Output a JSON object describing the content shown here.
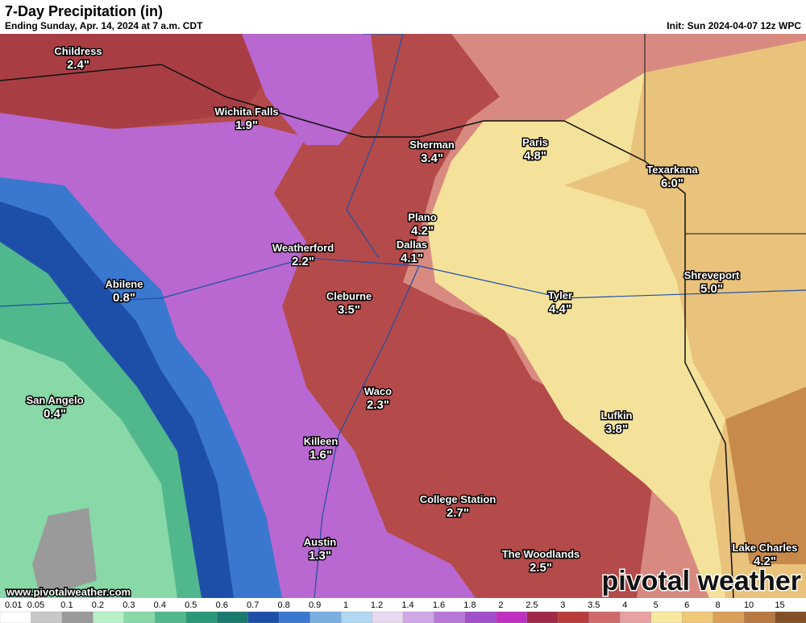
{
  "header": {
    "title": "7-Day Precipitation (in)",
    "subtitle": "Ending Sunday, Apr. 14, 2024 at 7 a.m. CDT",
    "init": "Init: Sun 2024-04-07 12z WPC"
  },
  "cities": [
    {
      "name": "Childress",
      "value": "2.4\""
    },
    {
      "name": "Wichita Falls",
      "value": "1.9\""
    },
    {
      "name": "Sherman",
      "value": "3.4\""
    },
    {
      "name": "Paris",
      "value": "4.8\""
    },
    {
      "name": "Texarkana",
      "value": "6.0\""
    },
    {
      "name": "Plano",
      "value": "4.2\""
    },
    {
      "name": "Dallas",
      "value": "4.1\""
    },
    {
      "name": "Weatherford",
      "value": "2.2\""
    },
    {
      "name": "Abilene",
      "value": "0.8\""
    },
    {
      "name": "Cleburne",
      "value": "3.5\""
    },
    {
      "name": "Tyler",
      "value": "4.4\""
    },
    {
      "name": "Shreveport",
      "value": "5.0\""
    },
    {
      "name": "Waco",
      "value": "2.3\""
    },
    {
      "name": "San Angelo",
      "value": "0.4\""
    },
    {
      "name": "Lufkin",
      "value": "3.8\""
    },
    {
      "name": "Killeen",
      "value": "1.6\""
    },
    {
      "name": "College Station",
      "value": "2.7\""
    },
    {
      "name": "Austin",
      "value": "1.3\""
    },
    {
      "name": "The Woodlands",
      "value": "2.5\""
    },
    {
      "name": "Lake Charles",
      "value": "4.2\""
    }
  ],
  "website": "www.pivotalweather.com",
  "watermark": "pivotal weather",
  "legend": {
    "labels": [
      "0.01",
      "0.05",
      "0.1",
      "0.2",
      "0.3",
      "0.4",
      "0.5",
      "0.6",
      "0.7",
      "0.8",
      "0.9",
      "1",
      "1.2",
      "1.4",
      "1.6",
      "1.8",
      "2",
      "2.5",
      "3",
      "3.5",
      "4",
      "5",
      "6",
      "8",
      "10",
      "15"
    ],
    "colors": [
      "#ffffff",
      "#c8c8c8",
      "#9a9a9a",
      "#b8f0c8",
      "#88d8a8",
      "#50b88c",
      "#2a9878",
      "#1a7a6e",
      "#1e4fa8",
      "#3a78d0",
      "#7ab0e0",
      "#b0d8f0",
      "#e8d8f0",
      "#d0a8e8",
      "#b878d8",
      "#a050c8",
      "#c030c0",
      "#a02848",
      "#b83c3c",
      "#d06a6a",
      "#e8a0a0",
      "#f8e8a0",
      "#f0c878",
      "#d8a058",
      "#b87840",
      "#805028"
    ]
  }
}
